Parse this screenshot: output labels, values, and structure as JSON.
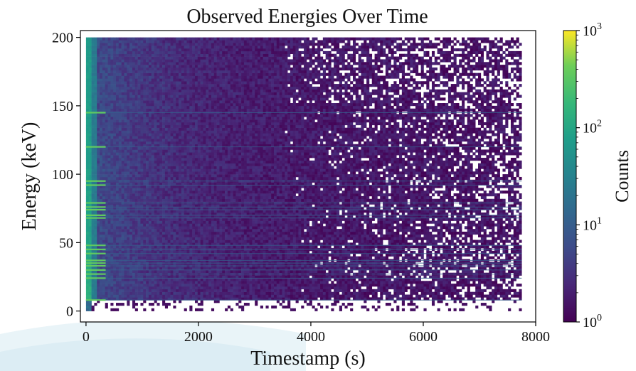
{
  "chart_data": {
    "type": "heatmap",
    "title": "Observed Energies Over Time",
    "xlabel": "Timestamp (s)",
    "ylabel": "Energy (keV)",
    "xlim": [
      -100,
      8000
    ],
    "ylim": [
      -8,
      205
    ],
    "x_ticks": [
      {
        "value": 0,
        "label": "0"
      },
      {
        "value": 2000,
        "label": "2000"
      },
      {
        "value": 4000,
        "label": "4000"
      },
      {
        "value": 6000,
        "label": "6000"
      },
      {
        "value": 8000,
        "label": "8000"
      }
    ],
    "y_ticks": [
      {
        "value": 0,
        "label": "0"
      },
      {
        "value": 50,
        "label": "50"
      },
      {
        "value": 100,
        "label": "100"
      },
      {
        "value": 150,
        "label": "150"
      },
      {
        "value": 200,
        "label": "200"
      }
    ],
    "data_extent": {
      "x": [
        0,
        7750
      ],
      "y": [
        0,
        200
      ]
    },
    "emission_lines_keV": [
      8,
      24,
      27,
      30,
      33,
      35,
      37,
      42,
      45,
      48,
      68,
      70,
      74,
      76,
      79,
      92,
      95,
      120,
      145
    ],
    "colorbar": {
      "label": "Counts",
      "scale": "log",
      "range": [
        1,
        1000
      ],
      "colormap": "viridis",
      "ticks": [
        {
          "value": 1,
          "base": "10",
          "exp": "0"
        },
        {
          "value": 10,
          "base": "10",
          "exp": "1"
        },
        {
          "value": 100,
          "base": "10",
          "exp": "2"
        },
        {
          "value": 1000,
          "base": "10",
          "exp": "3"
        }
      ]
    },
    "grid": false,
    "legend": "none"
  },
  "colors": {
    "viridis_low": "#440154",
    "viridis_mid": "#21918c",
    "viridis_high": "#fde725",
    "background_swoosh": "#e6f3f8"
  }
}
